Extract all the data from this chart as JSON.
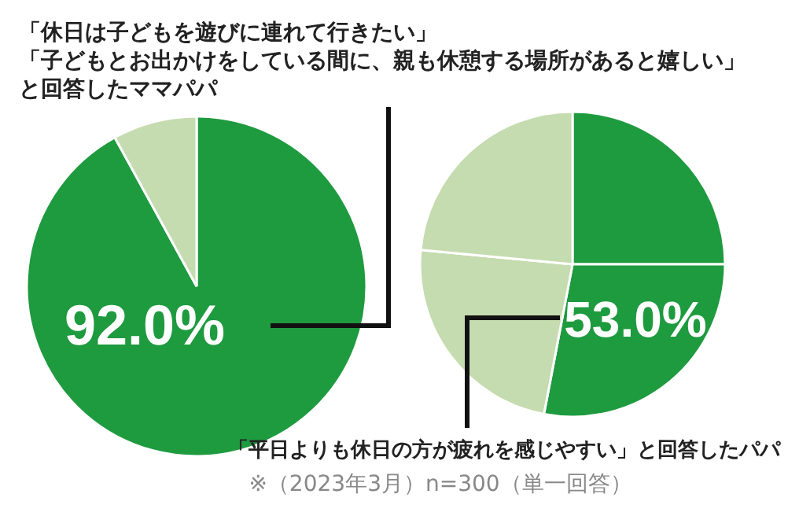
{
  "chart_data": [
    {
      "type": "pie",
      "categories": [
        null,
        null
      ],
      "values": [
        92.0,
        8.0
      ],
      "colors": [
        "#1e9a3f",
        "#c5dcb0"
      ],
      "value_labels": [
        "92.0%",
        null
      ],
      "annotations": [
        "「休日は子どもを遊びに連れて行きたい」",
        "「子どもとお出かけをしている間に、親も休憩する場所があると嬉しい」",
        "と回答したママパパ"
      ]
    },
    {
      "type": "pie",
      "categories": [
        null,
        null,
        null,
        null
      ],
      "values": [
        25,
        28,
        23.5,
        23.5
      ],
      "colors": [
        "#1e9a3f",
        "#1e9a3f",
        "#c5dcb0",
        "#c5dcb0"
      ],
      "annotations": [
        "53.0%",
        "「平日よりも休日の方が疲れを感じやすい」と回答したパパ",
        "※（2023年3月）n=300（単一回答）"
      ]
    }
  ]
}
